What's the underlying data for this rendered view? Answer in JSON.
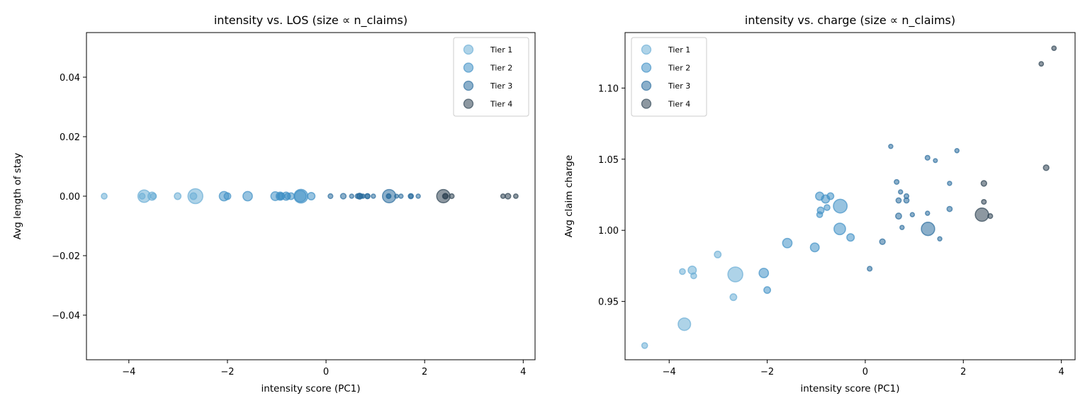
{
  "chart_data": [
    {
      "type": "scatter",
      "title": "intensity vs. LOS (size ∝ n_claims)",
      "xlabel": "intensity score (PC1)",
      "ylabel": "Avg length of stay",
      "xlim": [
        -4.86,
        4.24
      ],
      "ylim": [
        -0.055,
        0.055
      ],
      "xticks": [
        -4,
        -2,
        0,
        2,
        4
      ],
      "yticks": [
        -0.04,
        -0.02,
        0.0,
        0.02,
        0.04
      ],
      "xtick_labels": [
        "−4",
        "−2",
        "0",
        "2",
        "4"
      ],
      "ytick_labels": [
        "−0.04",
        "−0.02",
        "0.00",
        "0.02",
        "0.04"
      ],
      "grid": false,
      "legend_placement": "upper right",
      "y_field": "los"
    },
    {
      "type": "scatter",
      "title": "intensity vs. charge (size ∝ n_claims)",
      "xlabel": "intensity score (PC1)",
      "ylabel": "Avg claim charge",
      "xlim": [
        -4.9,
        4.28
      ],
      "ylim": [
        0.909,
        1.139
      ],
      "xticks": [
        -4,
        -2,
        0,
        2,
        4
      ],
      "yticks": [
        0.95,
        1.0,
        1.05,
        1.1
      ],
      "xtick_labels": [
        "−4",
        "−2",
        "0",
        "2",
        "4"
      ],
      "ytick_labels": [
        "0.95",
        "1.00",
        "1.05",
        "1.10"
      ],
      "grid": false,
      "legend_placement": "upper left",
      "y_field": "charge"
    }
  ],
  "legend": [
    {
      "name": "Tier 1",
      "color": "#6baed6"
    },
    {
      "name": "Tier 2",
      "color": "#4292c6"
    },
    {
      "name": "Tier 3",
      "color": "#2c6e9e"
    },
    {
      "name": "Tier 4",
      "color": "#2f4454"
    }
  ],
  "points": [
    {
      "tier": 1,
      "x": -4.5,
      "charge": 0.919,
      "los": 0,
      "n_claims": 15
    },
    {
      "tier": 1,
      "x": -3.73,
      "charge": 0.971,
      "los": 0,
      "n_claims": 15
    },
    {
      "tier": 1,
      "x": -3.53,
      "charge": 0.972,
      "los": 0,
      "n_claims": 30
    },
    {
      "tier": 1,
      "x": -3.5,
      "charge": 0.968,
      "los": 0,
      "n_claims": 15
    },
    {
      "tier": 1,
      "x": -3.69,
      "charge": 0.934,
      "los": 0,
      "n_claims": 70
    },
    {
      "tier": 1,
      "x": -3.01,
      "charge": 0.983,
      "los": 0,
      "n_claims": 20
    },
    {
      "tier": 1,
      "x": -2.65,
      "charge": 0.969,
      "los": 0,
      "n_claims": 100
    },
    {
      "tier": 1,
      "x": -2.69,
      "charge": 0.953,
      "los": 0,
      "n_claims": 20
    },
    {
      "tier": 2,
      "x": -2.07,
      "charge": 0.97,
      "los": 0,
      "n_claims": 40
    },
    {
      "tier": 2,
      "x": -2.0,
      "charge": 0.958,
      "los": 0,
      "n_claims": 20
    },
    {
      "tier": 2,
      "x": -1.59,
      "charge": 0.991,
      "los": 0,
      "n_claims": 40
    },
    {
      "tier": 2,
      "x": -1.03,
      "charge": 0.988,
      "los": 0,
      "n_claims": 35
    },
    {
      "tier": 2,
      "x": -0.52,
      "charge": 1.001,
      "los": 0,
      "n_claims": 60
    },
    {
      "tier": 2,
      "x": -0.3,
      "charge": 0.995,
      "los": 0,
      "n_claims": 25
    },
    {
      "tier": 2,
      "x": -0.51,
      "charge": 1.017,
      "los": 0,
      "n_claims": 85
    },
    {
      "tier": 2,
      "x": -0.93,
      "charge": 1.024,
      "los": 0,
      "n_claims": 30
    },
    {
      "tier": 2,
      "x": -0.81,
      "charge": 1.022,
      "los": 0,
      "n_claims": 30
    },
    {
      "tier": 2,
      "x": -0.71,
      "charge": 1.024,
      "los": 0,
      "n_claims": 20
    },
    {
      "tier": 2,
      "x": -0.91,
      "charge": 1.014,
      "los": 0,
      "n_claims": 20
    },
    {
      "tier": 2,
      "x": -0.93,
      "charge": 1.011,
      "los": 0,
      "n_claims": 15
    },
    {
      "tier": 2,
      "x": -0.78,
      "charge": 1.016,
      "los": 0,
      "n_claims": 15
    },
    {
      "tier": 3,
      "x": 0.09,
      "charge": 0.973,
      "los": 0,
      "n_claims": 10
    },
    {
      "tier": 3,
      "x": 0.35,
      "charge": 0.992,
      "los": 0,
      "n_claims": 14
    },
    {
      "tier": 3,
      "x": 0.52,
      "charge": 1.059,
      "los": 0,
      "n_claims": 8
    },
    {
      "tier": 3,
      "x": 0.64,
      "charge": 1.034,
      "los": 0,
      "n_claims": 10
    },
    {
      "tier": 3,
      "x": 0.72,
      "charge": 1.027,
      "los": 0,
      "n_claims": 8
    },
    {
      "tier": 3,
      "x": 0.84,
      "charge": 1.024,
      "los": 0,
      "n_claims": 10
    },
    {
      "tier": 3,
      "x": 0.68,
      "charge": 1.021,
      "los": 0,
      "n_claims": 12
    },
    {
      "tier": 3,
      "x": 0.84,
      "charge": 1.021,
      "los": 0,
      "n_claims": 12
    },
    {
      "tier": 3,
      "x": 0.68,
      "charge": 1.01,
      "los": 0,
      "n_claims": 16
    },
    {
      "tier": 3,
      "x": 0.96,
      "charge": 1.011,
      "los": 0,
      "n_claims": 8
    },
    {
      "tier": 3,
      "x": 0.75,
      "charge": 1.002,
      "los": 0,
      "n_claims": 8
    },
    {
      "tier": 3,
      "x": 1.27,
      "charge": 1.012,
      "los": 0,
      "n_claims": 8
    },
    {
      "tier": 3,
      "x": 1.28,
      "charge": 1.001,
      "los": 0,
      "n_claims": 80
    },
    {
      "tier": 3,
      "x": 1.52,
      "charge": 0.994,
      "los": 0,
      "n_claims": 8
    },
    {
      "tier": 3,
      "x": 1.27,
      "charge": 1.051,
      "los": 0,
      "n_claims": 10
    },
    {
      "tier": 3,
      "x": 1.43,
      "charge": 1.049,
      "los": 0,
      "n_claims": 7
    },
    {
      "tier": 3,
      "x": 1.87,
      "charge": 1.056,
      "los": 0,
      "n_claims": 8
    },
    {
      "tier": 3,
      "x": 1.72,
      "charge": 1.033,
      "los": 0,
      "n_claims": 8
    },
    {
      "tier": 3,
      "x": 1.72,
      "charge": 1.015,
      "los": 0,
      "n_claims": 12
    },
    {
      "tier": 4,
      "x": 2.42,
      "charge": 1.033,
      "los": 0,
      "n_claims": 14
    },
    {
      "tier": 4,
      "x": 2.42,
      "charge": 1.02,
      "los": 0,
      "n_claims": 10
    },
    {
      "tier": 4,
      "x": 2.38,
      "charge": 1.011,
      "los": 0,
      "n_claims": 80
    },
    {
      "tier": 4,
      "x": 2.55,
      "charge": 1.01,
      "los": 0,
      "n_claims": 10
    },
    {
      "tier": 4,
      "x": 3.69,
      "charge": 1.044,
      "los": 0,
      "n_claims": 14
    },
    {
      "tier": 4,
      "x": 3.59,
      "charge": 1.117,
      "los": 0,
      "n_claims": 9
    },
    {
      "tier": 4,
      "x": 3.85,
      "charge": 1.128,
      "los": 0,
      "n_claims": 9
    }
  ]
}
